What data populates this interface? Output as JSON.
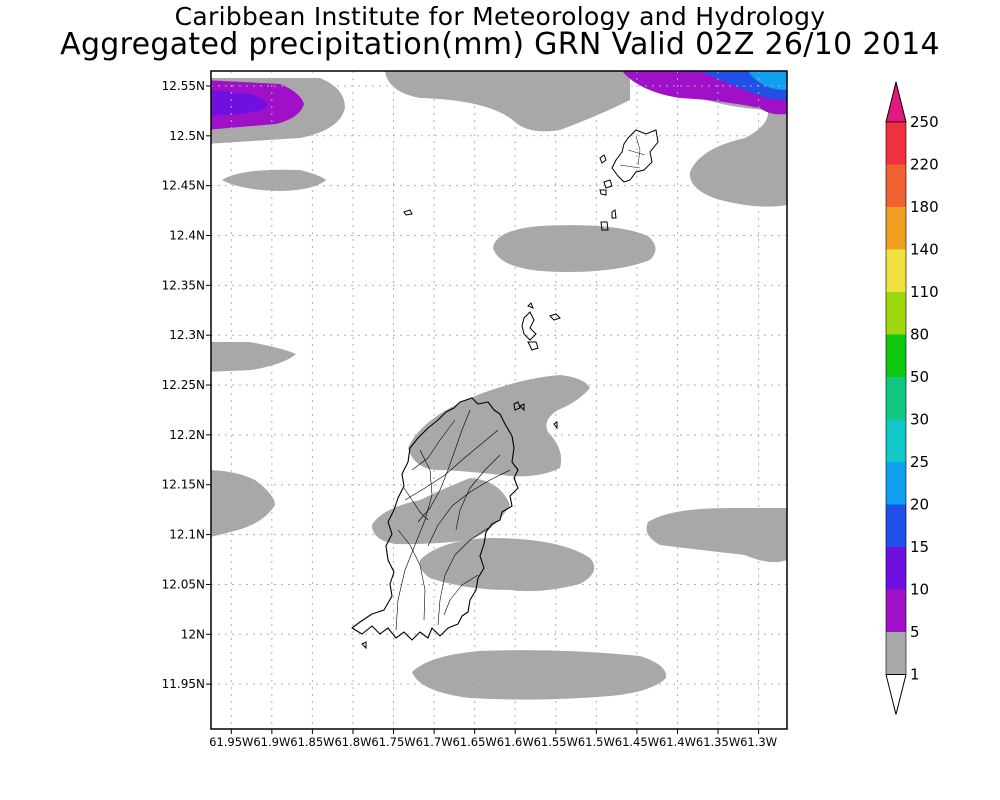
{
  "title": {
    "line1": "Caribbean Institute for Meteorology and Hydrology",
    "line2": "Aggregated precipitation(mm) GRN Valid 02Z 26/10 2014"
  },
  "map": {
    "region": "Grenada",
    "lat_range": [
      11.905,
      12.565
    ],
    "lon_range": [
      -61.975,
      -61.265
    ],
    "lat_ticks": [
      "12.55N",
      "12.5N",
      "12.45N",
      "12.4N",
      "12.35N",
      "12.3N",
      "12.25N",
      "12.2N",
      "12.15N",
      "12.1N",
      "12.05N",
      "12N",
      "11.95N"
    ],
    "lon_ticks": [
      "61.95W",
      "61.9W",
      "61.85W",
      "61.8W",
      "61.75W",
      "61.7W",
      "61.65W",
      "61.6W",
      "61.55W",
      "61.5W",
      "61.45W",
      "61.4W",
      "61.35W",
      "61.3W"
    ],
    "grid": "dotted"
  },
  "legend": {
    "placement": "right",
    "labels": [
      "1",
      "5",
      "10",
      "15",
      "20",
      "25",
      "30",
      "50",
      "80",
      "110",
      "140",
      "180",
      "220",
      "250"
    ],
    "colors": [
      "#ffffff",
      "#a8a8a8",
      "#a010c8",
      "#7010e0",
      "#2050e8",
      "#10a0f0",
      "#10c8c8",
      "#10c880",
      "#10c810",
      "#a0d810",
      "#f0e040",
      "#f0a020",
      "#f06030",
      "#f03040",
      "#e01880"
    ]
  },
  "colors": {
    "light_rain": "#a8a8a8",
    "background": "#ffffff",
    "coastline": "#000000"
  }
}
